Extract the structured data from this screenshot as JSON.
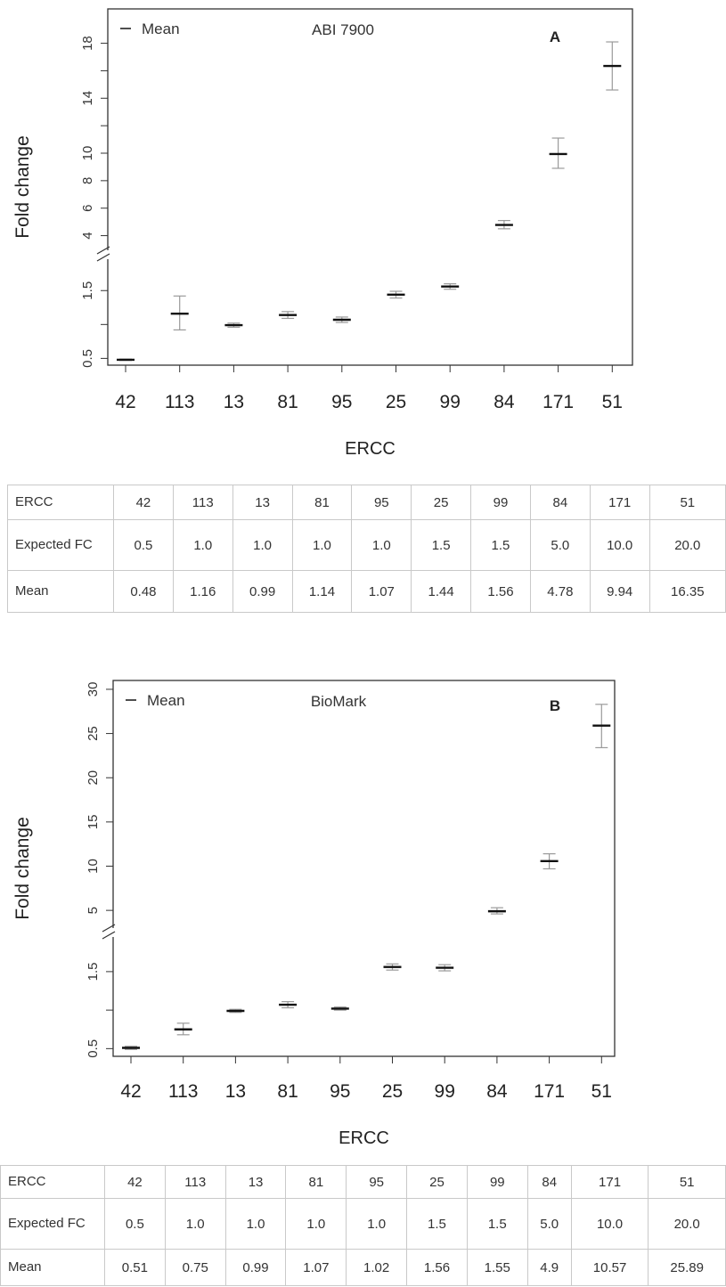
{
  "panels": [
    {
      "id": "A",
      "instrument_label": "ABI 7900",
      "legend_label": "Mean",
      "panel_letter": "A",
      "table": {
        "header": "ERCC",
        "expected_label": "Expected FC",
        "mean_label": "Mean",
        "ercc": [
          "42",
          "113",
          "13",
          "81",
          "95",
          "25",
          "99",
          "84",
          "171",
          "51"
        ],
        "expected": [
          "0.5",
          "1.0",
          "1.0",
          "1.0",
          "1.0",
          "1.5",
          "1.5",
          "5.0",
          "10.0",
          "20.0"
        ],
        "mean": [
          "0.48",
          "1.16",
          "0.99",
          "1.14",
          "1.07",
          "1.44",
          "1.56",
          "4.78",
          "9.94",
          "16.35"
        ]
      }
    },
    {
      "id": "B",
      "instrument_label": "BioMark",
      "legend_label": "Mean",
      "panel_letter": "B",
      "table": {
        "header": "ERCC",
        "expected_label": "Expected FC",
        "mean_label": "Mean",
        "ercc": [
          "42",
          "113",
          "13",
          "81",
          "95",
          "25",
          "99",
          "84",
          "171",
          "51"
        ],
        "expected": [
          "0.5",
          "1.0",
          "1.0",
          "1.0",
          "1.0",
          "1.5",
          "1.5",
          "5.0",
          "10.0",
          "20.0"
        ],
        "mean": [
          "0.51",
          "0.75",
          "0.99",
          "1.07",
          "1.02",
          "1.56",
          "1.55",
          "4.9",
          "10.57",
          "25.89"
        ]
      }
    }
  ],
  "chart_data": [
    {
      "type": "scatter",
      "title": "ABI 7900",
      "xlabel": "ERCC",
      "ylabel": "Fold change",
      "categories": [
        "42",
        "113",
        "13",
        "81",
        "95",
        "25",
        "99",
        "84",
        "171",
        "51"
      ],
      "series": [
        {
          "name": "Mean",
          "values": [
            0.48,
            1.16,
            0.99,
            1.14,
            1.07,
            1.44,
            1.56,
            4.78,
            9.94,
            16.35
          ],
          "err_low": [
            0.47,
            0.92,
            0.96,
            1.09,
            1.03,
            1.39,
            1.52,
            4.5,
            8.9,
            14.6
          ],
          "err_high": [
            0.49,
            1.42,
            1.02,
            1.19,
            1.11,
            1.49,
            1.6,
            5.1,
            11.1,
            18.1
          ]
        }
      ],
      "y_axis": {
        "broken": true,
        "lower_segment": {
          "ylim": [
            0.4,
            1.95
          ],
          "ticks": [
            "0.5",
            "1.5"
          ],
          "tick_values": [
            0.5,
            1.0,
            1.5
          ]
        },
        "upper_segment": {
          "ylim": [
            3.0,
            20.5
          ],
          "ticks": [
            "4",
            "6",
            "8",
            "10",
            "14",
            "18"
          ],
          "tick_values": [
            4,
            6,
            8,
            10,
            12,
            14,
            16,
            18
          ]
        }
      },
      "legend_position": "top-left",
      "grid": false
    },
    {
      "type": "scatter",
      "title": "BioMark",
      "xlabel": "ERCC",
      "ylabel": "Fold change",
      "categories": [
        "42",
        "113",
        "13",
        "81",
        "95",
        "25",
        "99",
        "84",
        "171",
        "51"
      ],
      "series": [
        {
          "name": "Mean",
          "values": [
            0.51,
            0.75,
            0.99,
            1.07,
            1.02,
            1.56,
            1.55,
            4.9,
            10.57,
            25.89
          ],
          "err_low": [
            0.49,
            0.68,
            0.97,
            1.03,
            1.0,
            1.52,
            1.51,
            4.6,
            9.7,
            23.4
          ],
          "err_high": [
            0.53,
            0.83,
            1.01,
            1.11,
            1.04,
            1.6,
            1.59,
            5.3,
            11.4,
            28.3
          ]
        }
      ],
      "y_axis": {
        "broken": true,
        "lower_segment": {
          "ylim": [
            0.4,
            1.95
          ],
          "ticks": [
            "0.5",
            "1.5"
          ],
          "tick_values": [
            0.5,
            1.0,
            1.5
          ]
        },
        "upper_segment": {
          "ylim": [
            3.0,
            31.0
          ],
          "ticks": [
            "5",
            "10",
            "15",
            "20",
            "25",
            "30"
          ],
          "tick_values": [
            5,
            10,
            15,
            20,
            25,
            30
          ]
        }
      },
      "legend_position": "top-left",
      "grid": false
    }
  ]
}
